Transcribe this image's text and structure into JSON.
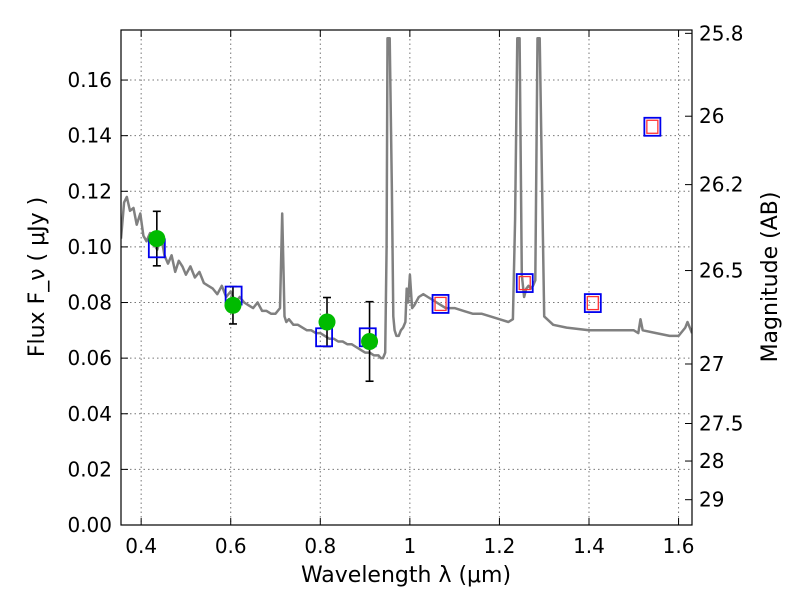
{
  "chart_data": {
    "type": "scatter",
    "xlabel": "Wavelength  λ (μm)",
    "ylabel": "Flux  F_ν  ( μJy )",
    "ylabel_right": "Magnitude (AB)",
    "xlim": [
      0.355,
      1.63
    ],
    "ylim": [
      0.0,
      0.178
    ],
    "grid": true,
    "x_ticks": [
      0.4,
      0.6,
      0.8,
      1.0,
      1.2,
      1.4,
      1.6
    ],
    "x_tick_labels": [
      "0.4",
      "0.6",
      "0.8",
      "1",
      "1.2",
      "1.4",
      "1.6"
    ],
    "y_ticks": [
      0.0,
      0.02,
      0.04,
      0.06,
      0.08,
      0.1,
      0.12,
      0.14,
      0.16
    ],
    "y_tick_labels": [
      "0.00",
      "0.02",
      "0.04",
      "0.06",
      "0.08",
      "0.10",
      "0.12",
      "0.14",
      "0.16"
    ],
    "right_ticks": [
      {
        "label": "25.8",
        "flux": 0.1768
      },
      {
        "label": "26",
        "flux": 0.147
      },
      {
        "label": "26.2",
        "flux": 0.1224
      },
      {
        "label": "26.5",
        "flux": 0.0915
      },
      {
        "label": "27",
        "flux": 0.0579
      },
      {
        "label": "27.5",
        "flux": 0.0365
      },
      {
        "label": "28",
        "flux": 0.023
      },
      {
        "label": "29",
        "flux": 0.0091
      }
    ],
    "colors": {
      "model": "#808080",
      "observed": "#00bb00",
      "model_phot_blue": "#0000ee",
      "model_phot_red": "#ff3333",
      "errorbar": "#000000",
      "grid": "#777777"
    },
    "series": [
      {
        "kind": "line",
        "x": [
          0.355,
          0.362,
          0.368,
          0.375,
          0.383,
          0.39,
          0.398,
          0.405,
          0.412,
          0.42,
          0.428,
          0.436,
          0.445,
          0.452,
          0.46,
          0.468,
          0.476,
          0.484,
          0.492,
          0.5,
          0.51,
          0.52,
          0.53,
          0.54,
          0.55,
          0.56,
          0.57,
          0.58,
          0.59,
          0.6,
          0.61,
          0.62,
          0.63,
          0.64,
          0.65,
          0.66,
          0.67,
          0.68,
          0.69,
          0.7,
          0.71,
          0.715,
          0.718,
          0.72,
          0.724,
          0.73,
          0.74,
          0.75,
          0.76,
          0.77,
          0.78,
          0.79,
          0.8,
          0.81,
          0.82,
          0.83,
          0.84,
          0.85,
          0.86,
          0.87,
          0.88,
          0.89,
          0.9,
          0.91,
          0.92,
          0.93,
          0.935,
          0.94,
          0.945,
          0.948,
          0.95,
          0.952,
          0.955,
          0.96,
          0.963,
          0.966,
          0.97,
          0.975,
          0.98,
          0.985,
          0.99,
          0.993,
          0.996,
          1.0,
          1.005,
          1.01,
          1.02,
          1.03,
          1.04,
          1.05,
          1.06,
          1.07,
          1.08,
          1.1,
          1.12,
          1.14,
          1.16,
          1.18,
          1.2,
          1.22,
          1.23,
          1.235,
          1.24,
          1.245,
          1.25,
          1.255,
          1.26,
          1.265,
          1.27,
          1.275,
          1.28,
          1.285,
          1.29,
          1.3,
          1.32,
          1.35,
          1.4,
          1.45,
          1.5,
          1.51,
          1.515,
          1.52,
          1.55,
          1.58,
          1.6,
          1.615,
          1.62,
          1.625,
          1.63
        ],
        "y": [
          0.103,
          0.116,
          0.118,
          0.113,
          0.114,
          0.108,
          0.112,
          0.104,
          0.102,
          0.105,
          0.101,
          0.099,
          0.104,
          0.097,
          0.094,
          0.097,
          0.091,
          0.095,
          0.093,
          0.09,
          0.093,
          0.089,
          0.091,
          0.087,
          0.086,
          0.085,
          0.083,
          0.086,
          0.082,
          0.084,
          0.08,
          0.082,
          0.08,
          0.079,
          0.078,
          0.08,
          0.077,
          0.077,
          0.076,
          0.076,
          0.078,
          0.112,
          0.09,
          0.075,
          0.073,
          0.074,
          0.072,
          0.072,
          0.071,
          0.07,
          0.07,
          0.069,
          0.069,
          0.068,
          0.067,
          0.067,
          0.066,
          0.066,
          0.065,
          0.065,
          0.064,
          0.063,
          0.062,
          0.062,
          0.061,
          0.061,
          0.06,
          0.06,
          0.062,
          0.1,
          0.175,
          0.175,
          0.175,
          0.12,
          0.075,
          0.07,
          0.068,
          0.068,
          0.07,
          0.071,
          0.073,
          0.085,
          0.08,
          0.09,
          0.078,
          0.079,
          0.082,
          0.083,
          0.082,
          0.081,
          0.08,
          0.079,
          0.078,
          0.078,
          0.077,
          0.076,
          0.076,
          0.075,
          0.074,
          0.073,
          0.074,
          0.11,
          0.175,
          0.175,
          0.09,
          0.082,
          0.085,
          0.086,
          0.085,
          0.086,
          0.088,
          0.175,
          0.175,
          0.075,
          0.072,
          0.071,
          0.07,
          0.07,
          0.07,
          0.069,
          0.074,
          0.07,
          0.069,
          0.068,
          0.068,
          0.071,
          0.073,
          0.071,
          0.069
        ]
      },
      {
        "kind": "observed",
        "points": [
          {
            "x": 0.435,
            "y": 0.103,
            "err": 0.0098
          },
          {
            "x": 0.605,
            "y": 0.079,
            "err": 0.0067
          },
          {
            "x": 0.815,
            "y": 0.073,
            "err": 0.0088
          },
          {
            "x": 0.91,
            "y": 0.066,
            "err": 0.0143
          }
        ]
      },
      {
        "kind": "model_photometry",
        "points": [
          {
            "x": 0.435,
            "y": 0.0995
          },
          {
            "x": 0.6065,
            "y": 0.0825
          },
          {
            "x": 0.8085,
            "y": 0.0675
          },
          {
            "x": 0.906,
            "y": 0.0675
          },
          {
            "x": 1.0685,
            "y": 0.0795
          },
          {
            "x": 1.2565,
            "y": 0.087
          },
          {
            "x": 1.4085,
            "y": 0.0798
          },
          {
            "x": 1.5415,
            "y": 0.1432
          }
        ],
        "inner_red_from_index": 4
      }
    ]
  }
}
